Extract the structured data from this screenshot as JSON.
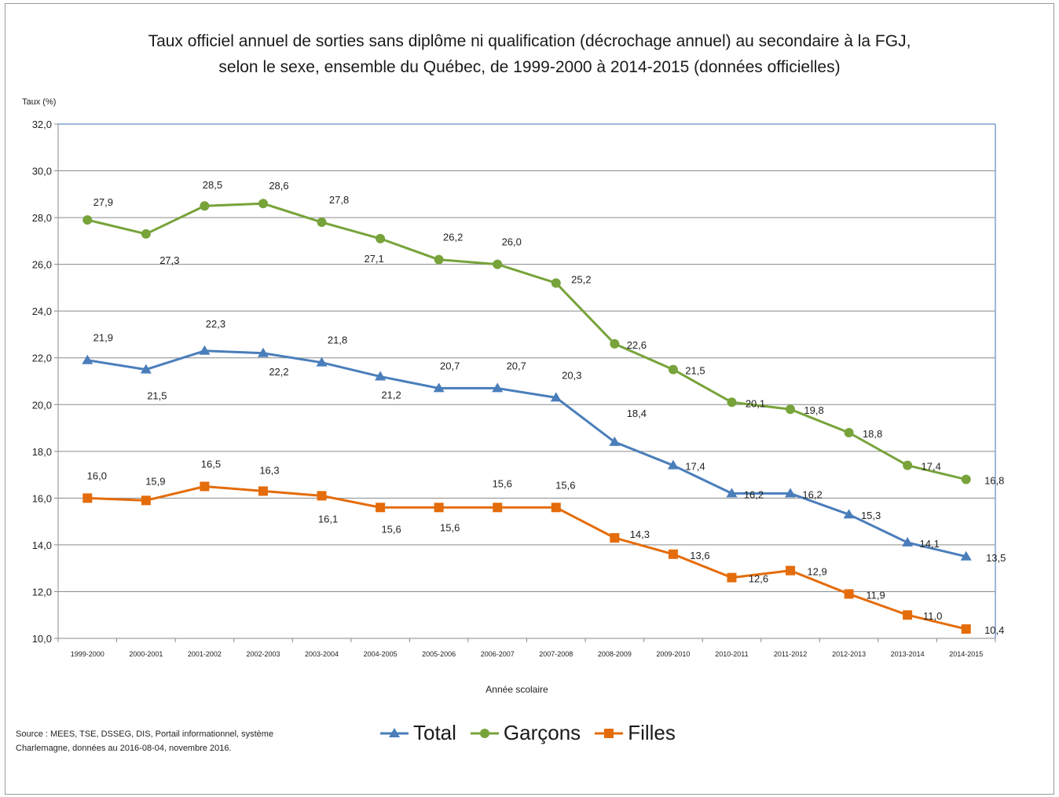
{
  "chart_data": {
    "type": "line",
    "title_lines": [
      "Taux officiel annuel de sorties sans diplôme ni qualification (décrochage annuel) au secondaire à la FGJ,",
      "selon le sexe, ensemble du Québec, de 1999-2000 à 2014-2015 (données officielles)"
    ],
    "ylabel": "Taux (%)",
    "xlabel": "Année scolaire",
    "ylim": [
      10,
      32
    ],
    "yticks": [
      "10,0",
      "12,0",
      "14,0",
      "16,0",
      "18,0",
      "20,0",
      "22,0",
      "24,0",
      "26,0",
      "28,0",
      "30,0",
      "32,0"
    ],
    "ytick_values": [
      10,
      12,
      14,
      16,
      18,
      20,
      22,
      24,
      26,
      28,
      30,
      32
    ],
    "categories": [
      "1999-2000",
      "2000-2001",
      "2001-2002",
      "2002-2003",
      "2003-2004",
      "2004-2005",
      "2005-2006",
      "2006-2007",
      "2007-2008",
      "2008-2009",
      "2009-2010",
      "2010-2011",
      "2011-2012",
      "2012-2013",
      "2013-2014",
      "2014-2015"
    ],
    "grid": true,
    "legend_position": "bottom",
    "series": [
      {
        "name": "Total",
        "color": "#4a7ebb",
        "marker": "triangle",
        "values": [
          21.9,
          21.5,
          22.3,
          22.2,
          21.8,
          21.2,
          20.7,
          20.7,
          20.3,
          18.4,
          17.4,
          16.2,
          16.2,
          15.3,
          14.1,
          13.5
        ],
        "labels": [
          "21,9",
          "21,5",
          "22,3",
          "22,2",
          "21,8",
          "21,2",
          "20,7",
          "20,7",
          "20,3",
          "18,4",
          "17,4",
          "16,2",
          "16,2",
          "15,3",
          "14,1",
          "13,5"
        ]
      },
      {
        "name": "Garçons",
        "color": "#77a33a",
        "marker": "circle",
        "values": [
          27.9,
          27.3,
          28.5,
          28.6,
          27.8,
          27.1,
          26.2,
          26.0,
          25.2,
          22.6,
          21.5,
          20.1,
          19.8,
          18.8,
          17.4,
          16.8
        ],
        "labels": [
          "27,9",
          "27,3",
          "28,5",
          "28,6",
          "27,8",
          "27,1",
          "26,2",
          "26,0",
          "25,2",
          "22,6",
          "21,5",
          "20,1",
          "19,8",
          "18,8",
          "17,4",
          "16,8"
        ]
      },
      {
        "name": "Filles",
        "color": "#e46c0a",
        "marker": "square",
        "values": [
          16.0,
          15.9,
          16.5,
          16.3,
          16.1,
          15.6,
          15.6,
          15.6,
          15.6,
          14.3,
          13.6,
          12.6,
          12.9,
          11.9,
          11.0,
          10.4
        ],
        "labels": [
          "16,0",
          "15,9",
          "16,5",
          "16,3",
          "16,1",
          "15,6",
          "15,6",
          "15,6",
          "15,6",
          "14,3",
          "13,6",
          "12,6",
          "12,9",
          "11,9",
          "11,0",
          "10,4"
        ]
      }
    ]
  },
  "source": {
    "line1": "Source :  MEES, TSE, DSSEG, DIS, Portail informationnel, système",
    "line2": "Charlemagne, données au 2016-08-04, novembre 2016."
  }
}
